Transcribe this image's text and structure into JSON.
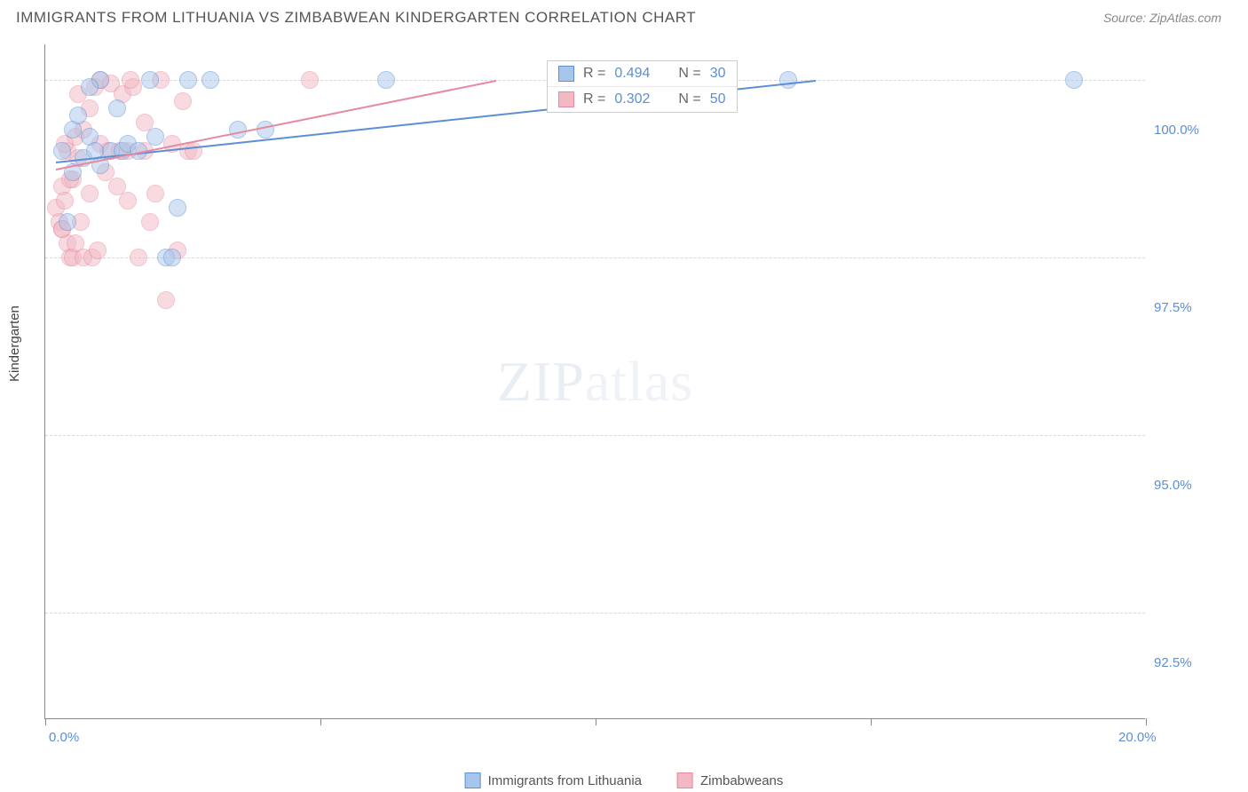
{
  "title": "IMMIGRANTS FROM LITHUANIA VS ZIMBABWEAN KINDERGARTEN CORRELATION CHART",
  "source": "Source: ZipAtlas.com",
  "watermark_left": "ZIP",
  "watermark_right": "atlas",
  "chart": {
    "type": "scatter",
    "xlim": [
      0,
      20
    ],
    "ylim": [
      91,
      100.5
    ],
    "x_ticks": [
      0,
      5,
      10,
      15,
      20
    ],
    "x_tick_labels": [
      "0.0%",
      "",
      "",
      "",
      "20.0%"
    ],
    "y_gridlines": [
      92.5,
      95.0,
      97.5,
      100.0
    ],
    "y_tick_labels": [
      "92.5%",
      "95.0%",
      "97.5%",
      "100.0%"
    ],
    "y_label": "Kindergarten",
    "background_color": "#ffffff",
    "grid_color": "#d8d8d8",
    "axis_color": "#888888",
    "label_color": "#5b8fd6",
    "marker_radius": 10,
    "marker_opacity": 0.5,
    "series": [
      {
        "name": "Immigrants from Lithuania",
        "fill": "#a8c6ea",
        "stroke": "#5b8fd6",
        "line_color": "#5b8fd6",
        "R": "0.494",
        "N": "30",
        "trend": {
          "x1": 0.2,
          "y1": 98.85,
          "x2": 14.0,
          "y2": 100.0
        },
        "points": [
          [
            0.3,
            99.0
          ],
          [
            0.4,
            98.0
          ],
          [
            0.5,
            99.3
          ],
          [
            0.5,
            98.7
          ],
          [
            0.6,
            99.5
          ],
          [
            0.7,
            98.9
          ],
          [
            0.8,
            99.2
          ],
          [
            0.9,
            99.0
          ],
          [
            1.0,
            98.8
          ],
          [
            1.0,
            100.0
          ],
          [
            1.2,
            99.0
          ],
          [
            1.3,
            99.6
          ],
          [
            1.4,
            99.0
          ],
          [
            1.5,
            99.1
          ],
          [
            1.7,
            99.0
          ],
          [
            1.9,
            100.0
          ],
          [
            2.0,
            99.2
          ],
          [
            2.2,
            97.5
          ],
          [
            2.4,
            98.2
          ],
          [
            2.6,
            100.0
          ],
          [
            3.0,
            100.0
          ],
          [
            3.5,
            99.3
          ],
          [
            4.0,
            99.3
          ],
          [
            6.2,
            100.0
          ],
          [
            10.8,
            99.8
          ],
          [
            12.0,
            100.0
          ],
          [
            13.5,
            100.0
          ],
          [
            18.7,
            100.0
          ],
          [
            2.3,
            97.5
          ],
          [
            0.8,
            99.9
          ]
        ]
      },
      {
        "name": "Zimbabweans",
        "fill": "#f2b9c5",
        "stroke": "#e68aa0",
        "line_color": "#e68aa0",
        "R": "0.302",
        "N": "50",
        "trend": {
          "x1": 0.2,
          "y1": 98.75,
          "x2": 8.2,
          "y2": 100.0
        },
        "points": [
          [
            0.2,
            98.2
          ],
          [
            0.25,
            98.0
          ],
          [
            0.3,
            97.9
          ],
          [
            0.3,
            98.5
          ],
          [
            0.35,
            98.3
          ],
          [
            0.4,
            99.0
          ],
          [
            0.4,
            97.7
          ],
          [
            0.45,
            97.5
          ],
          [
            0.5,
            98.6
          ],
          [
            0.5,
            97.5
          ],
          [
            0.55,
            99.2
          ],
          [
            0.6,
            98.9
          ],
          [
            0.6,
            99.8
          ],
          [
            0.7,
            97.5
          ],
          [
            0.7,
            99.3
          ],
          [
            0.8,
            98.4
          ],
          [
            0.8,
            99.6
          ],
          [
            0.85,
            97.5
          ],
          [
            0.9,
            99.9
          ],
          [
            0.95,
            97.6
          ],
          [
            1.0,
            99.1
          ],
          [
            1.0,
            100.0
          ],
          [
            1.1,
            98.7
          ],
          [
            1.2,
            99.95
          ],
          [
            1.3,
            98.5
          ],
          [
            1.4,
            99.8
          ],
          [
            1.5,
            99.0
          ],
          [
            1.5,
            98.3
          ],
          [
            1.6,
            99.9
          ],
          [
            1.7,
            97.5
          ],
          [
            1.8,
            99.4
          ],
          [
            1.9,
            98.0
          ],
          [
            2.0,
            98.4
          ],
          [
            2.1,
            100.0
          ],
          [
            2.2,
            96.9
          ],
          [
            2.3,
            99.1
          ],
          [
            2.4,
            97.6
          ],
          [
            2.5,
            99.7
          ],
          [
            2.6,
            99.0
          ],
          [
            0.3,
            97.9
          ],
          [
            0.35,
            99.1
          ],
          [
            0.45,
            98.6
          ],
          [
            0.55,
            97.7
          ],
          [
            1.15,
            99.0
          ],
          [
            1.35,
            99.0
          ],
          [
            1.8,
            99.0
          ],
          [
            4.8,
            100.0
          ],
          [
            2.7,
            99.0
          ],
          [
            1.55,
            100.0
          ],
          [
            0.65,
            98.0
          ]
        ]
      }
    ]
  },
  "legend_corr": {
    "r_label": "R =",
    "n_label": "N ="
  },
  "bottom_legend": {
    "items": [
      "Immigrants from Lithuania",
      "Zimbabweans"
    ]
  }
}
